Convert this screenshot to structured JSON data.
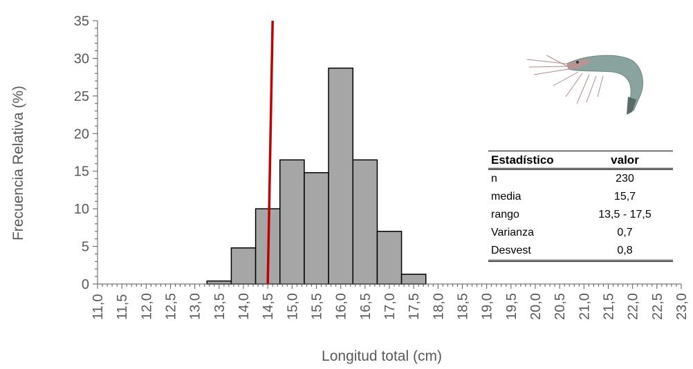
{
  "chart_data": {
    "type": "bar",
    "xlabel": "Longitud total (cm)",
    "ylabel": "Frecuencia Relativa (%)",
    "ylim": [
      0,
      35
    ],
    "xlim": [
      11.0,
      23.0
    ],
    "y_ticks": [
      "0",
      "5",
      "10",
      "15",
      "20",
      "25",
      "30",
      "35"
    ],
    "x_ticks": [
      "11,0",
      "11,5",
      "12,0",
      "12,5",
      "13,0",
      "13,5",
      "14,0",
      "14,5",
      "15,0",
      "15,5",
      "16,0",
      "16,5",
      "17,0",
      "17,5",
      "18,0",
      "18,5",
      "19,0",
      "19,5",
      "20,0",
      "20,5",
      "21,0",
      "21,5",
      "22,0",
      "22,5",
      "23,0"
    ],
    "bin_width": 0.5,
    "bins": [
      {
        "x": 13.5,
        "value": 0.4
      },
      {
        "x": 14.0,
        "value": 4.8
      },
      {
        "x": 14.5,
        "value": 10.0
      },
      {
        "x": 15.0,
        "value": 16.5
      },
      {
        "x": 15.5,
        "value": 14.8
      },
      {
        "x": 16.0,
        "value": 28.7
      },
      {
        "x": 16.5,
        "value": 16.5
      },
      {
        "x": 17.0,
        "value": 7.0
      },
      {
        "x": 17.5,
        "value": 1.3
      }
    ],
    "reference_line": {
      "x_bottom": 14.5,
      "x_top": 14.6,
      "color": "#c00000"
    },
    "bar_color": "#a6a6a6",
    "grid": false
  },
  "stats_table": {
    "header": {
      "col1": "Estadístico",
      "col2": "valor"
    },
    "rows": [
      {
        "label": "n",
        "value": "230"
      },
      {
        "label": "media",
        "value": "15,7"
      },
      {
        "label": "rango",
        "value": "13,5 - 17,5"
      },
      {
        "label": "Varianza",
        "value": "0,7"
      },
      {
        "label": "Desvest",
        "value": "0,8"
      }
    ]
  },
  "image": {
    "icon": "shrimp-icon"
  }
}
